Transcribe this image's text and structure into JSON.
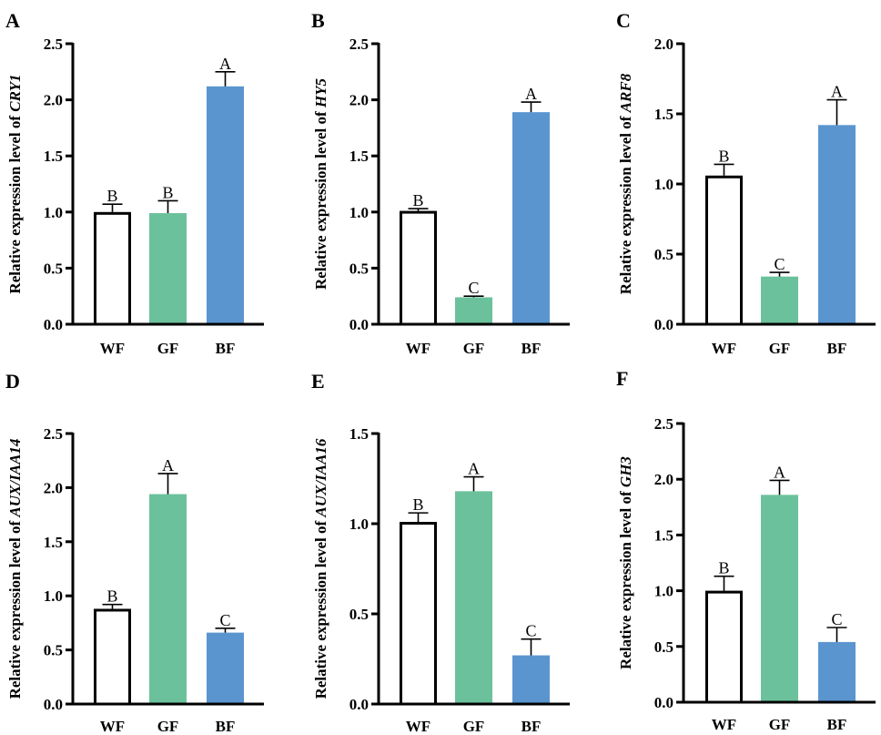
{
  "chart_data": [
    {
      "type": "bar",
      "panel": "A",
      "title": "",
      "ylabel_prefix": "Relative expression level of ",
      "gene": "CRY1",
      "xlabel": "",
      "categories": [
        "WF",
        "GF",
        "BF"
      ],
      "values": [
        1.0,
        0.99,
        2.12
      ],
      "errors": [
        0.07,
        0.11,
        0.13
      ],
      "significance": [
        "B",
        "B",
        "A"
      ],
      "ylim": [
        0,
        2.5
      ],
      "yticks": [
        "0.0",
        "0.5",
        "1.0",
        "1.5",
        "2.0",
        "2.5"
      ],
      "grid": false,
      "legend": "none"
    },
    {
      "type": "bar",
      "panel": "B",
      "title": "",
      "ylabel_prefix": "Relative expression level of ",
      "gene": "HY5",
      "xlabel": "",
      "categories": [
        "WF",
        "GF",
        "BF"
      ],
      "values": [
        1.01,
        0.24,
        1.89
      ],
      "errors": [
        0.02,
        0.01,
        0.09
      ],
      "significance": [
        "B",
        "C",
        "A"
      ],
      "ylim": [
        0,
        2.5
      ],
      "yticks": [
        "0.0",
        "0.5",
        "1.0",
        "1.5",
        "2.0",
        "2.5"
      ],
      "grid": false,
      "legend": "none"
    },
    {
      "type": "bar",
      "panel": "C",
      "title": "",
      "ylabel_prefix": "Relative expression level of ",
      "gene": "ARF8",
      "xlabel": "",
      "categories": [
        "WF",
        "GF",
        "BF"
      ],
      "values": [
        1.06,
        0.34,
        1.42
      ],
      "errors": [
        0.08,
        0.03,
        0.18
      ],
      "significance": [
        "B",
        "C",
        "A"
      ],
      "ylim": [
        0,
        2.0
      ],
      "yticks": [
        "0.0",
        "0.5",
        "1.0",
        "1.5",
        "2.0"
      ],
      "grid": false,
      "legend": "none"
    },
    {
      "type": "bar",
      "panel": "D",
      "title": "",
      "ylabel_prefix": "Relative expression level of ",
      "gene": "AUX/IAA14",
      "xlabel": "",
      "categories": [
        "WF",
        "GF",
        "BF"
      ],
      "values": [
        0.88,
        1.94,
        0.66
      ],
      "errors": [
        0.04,
        0.19,
        0.04
      ],
      "significance": [
        "B",
        "A",
        "C"
      ],
      "ylim": [
        0,
        2.5
      ],
      "yticks": [
        "0.0",
        "0.5",
        "1.0",
        "1.5",
        "2.0",
        "2.5"
      ],
      "grid": false,
      "legend": "none"
    },
    {
      "type": "bar",
      "panel": "E",
      "title": "",
      "ylabel_prefix": "Relative expression level of ",
      "gene": "AUX/IAA16",
      "xlabel": "",
      "categories": [
        "WF",
        "GF",
        "BF"
      ],
      "values": [
        1.01,
        1.18,
        0.27
      ],
      "errors": [
        0.05,
        0.08,
        0.09
      ],
      "significance": [
        "B",
        "A",
        "C"
      ],
      "ylim": [
        0,
        1.5
      ],
      "yticks": [
        "0.0",
        "0.5",
        "1.0",
        "1.5"
      ],
      "grid": false,
      "legend": "none"
    },
    {
      "type": "bar",
      "panel": "F",
      "title": "",
      "ylabel_prefix": "Relative expression level of ",
      "gene": "GH3",
      "xlabel": "",
      "categories": [
        "WF",
        "GF",
        "BF"
      ],
      "values": [
        1.0,
        1.86,
        0.54
      ],
      "errors": [
        0.13,
        0.13,
        0.13
      ],
      "significance": [
        "B",
        "A",
        "C"
      ],
      "ylim": [
        0,
        2.5
      ],
      "yticks": [
        "0.0",
        "0.5",
        "1.0",
        "1.5",
        "2.0",
        "2.5"
      ],
      "grid": false,
      "legend": "none"
    }
  ],
  "colors": {
    "WF": "#ffffff",
    "GF": "#6bc19b",
    "BF": "#5a95cf",
    "outline": "#000000"
  }
}
